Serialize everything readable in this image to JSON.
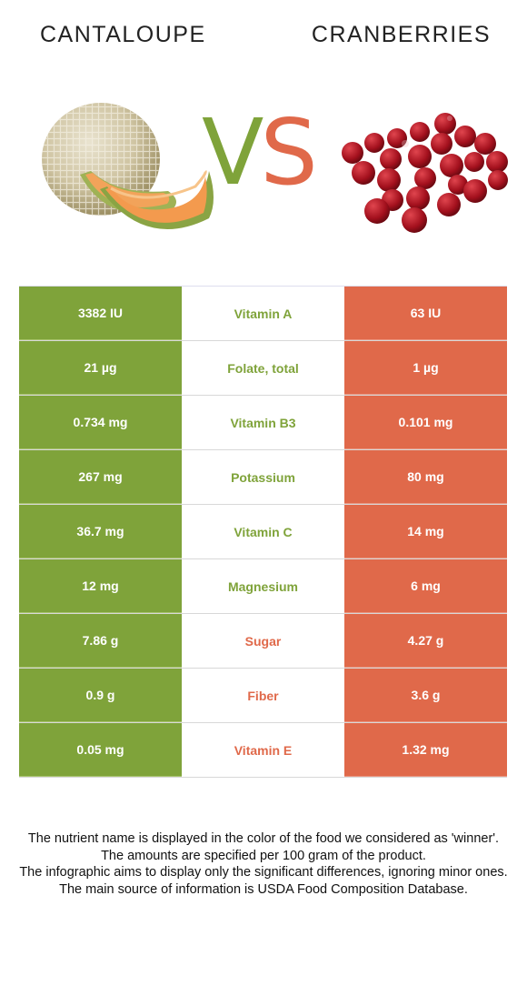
{
  "header": {
    "left_title": "CANTALOUPE",
    "right_title": "CRANBERRIES",
    "vs_v": "V",
    "vs_s": "S"
  },
  "colors": {
    "left_food": "#7fa33a",
    "right_food": "#e0694a"
  },
  "comparison": {
    "rows": [
      {
        "left": "3382 IU",
        "nutrient": "Vitamin A",
        "right": "63 IU",
        "winner": "left"
      },
      {
        "left": "21 µg",
        "nutrient": "Folate, total",
        "right": "1 µg",
        "winner": "left"
      },
      {
        "left": "0.734 mg",
        "nutrient": "Vitamin B3",
        "right": "0.101 mg",
        "winner": "left"
      },
      {
        "left": "267 mg",
        "nutrient": "Potassium",
        "right": "80 mg",
        "winner": "left"
      },
      {
        "left": "36.7 mg",
        "nutrient": "Vitamin C",
        "right": "14 mg",
        "winner": "left"
      },
      {
        "left": "12 mg",
        "nutrient": "Magnesium",
        "right": "6 mg",
        "winner": "left"
      },
      {
        "left": "7.86 g",
        "nutrient": "Sugar",
        "right": "4.27 g",
        "winner": "right"
      },
      {
        "left": "0.9 g",
        "nutrient": "Fiber",
        "right": "3.6 g",
        "winner": "right"
      },
      {
        "left": "0.05 mg",
        "nutrient": "Vitamin E",
        "right": "1.32 mg",
        "winner": "right"
      }
    ]
  },
  "footer": {
    "line1": "The nutrient name is displayed in the color of the food we considered as 'winner'.",
    "line2": "The amounts are specified per 100 gram of the product.",
    "line3": "The infographic aims to display only the significant differences, ignoring minor ones.",
    "line4": "The main source of information is USDA Food Composition Database."
  }
}
